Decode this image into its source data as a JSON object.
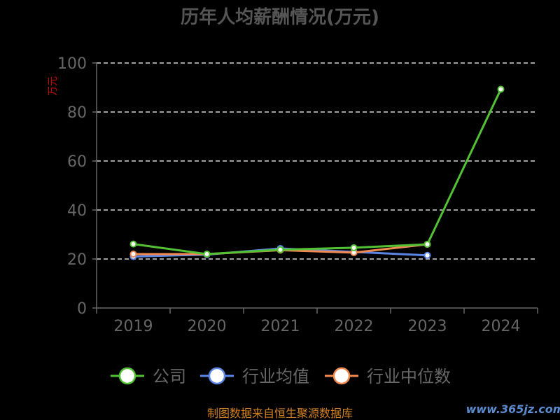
{
  "chart_data": {
    "type": "line",
    "title": "历年人均薪酬情况(万元)",
    "ylabel": "万元",
    "xlabel": "",
    "categories": [
      "2019",
      "2020",
      "2021",
      "2022",
      "2023",
      "2024"
    ],
    "ylim": [
      0,
      100
    ],
    "yticks": [
      "0",
      "20",
      "40",
      "60",
      "80",
      "100"
    ],
    "grid": true,
    "legend_position": "bottom",
    "series": [
      {
        "name": "公司",
        "color": "#52c234",
        "values": [
          26.1,
          22.0,
          23.8,
          24.6,
          26.0,
          89.3
        ]
      },
      {
        "name": "行业均值",
        "color": "#5b86e5",
        "values": [
          21.0,
          21.8,
          24.3,
          22.9,
          21.5,
          null
        ]
      },
      {
        "name": "行业中位数",
        "color": "#f08a50",
        "values": [
          22.0,
          22.0,
          23.6,
          22.6,
          26.0,
          null
        ]
      }
    ]
  },
  "footer": {
    "source": "制图数据来自恒生聚源数据库",
    "watermark": "www.365jz.com"
  }
}
